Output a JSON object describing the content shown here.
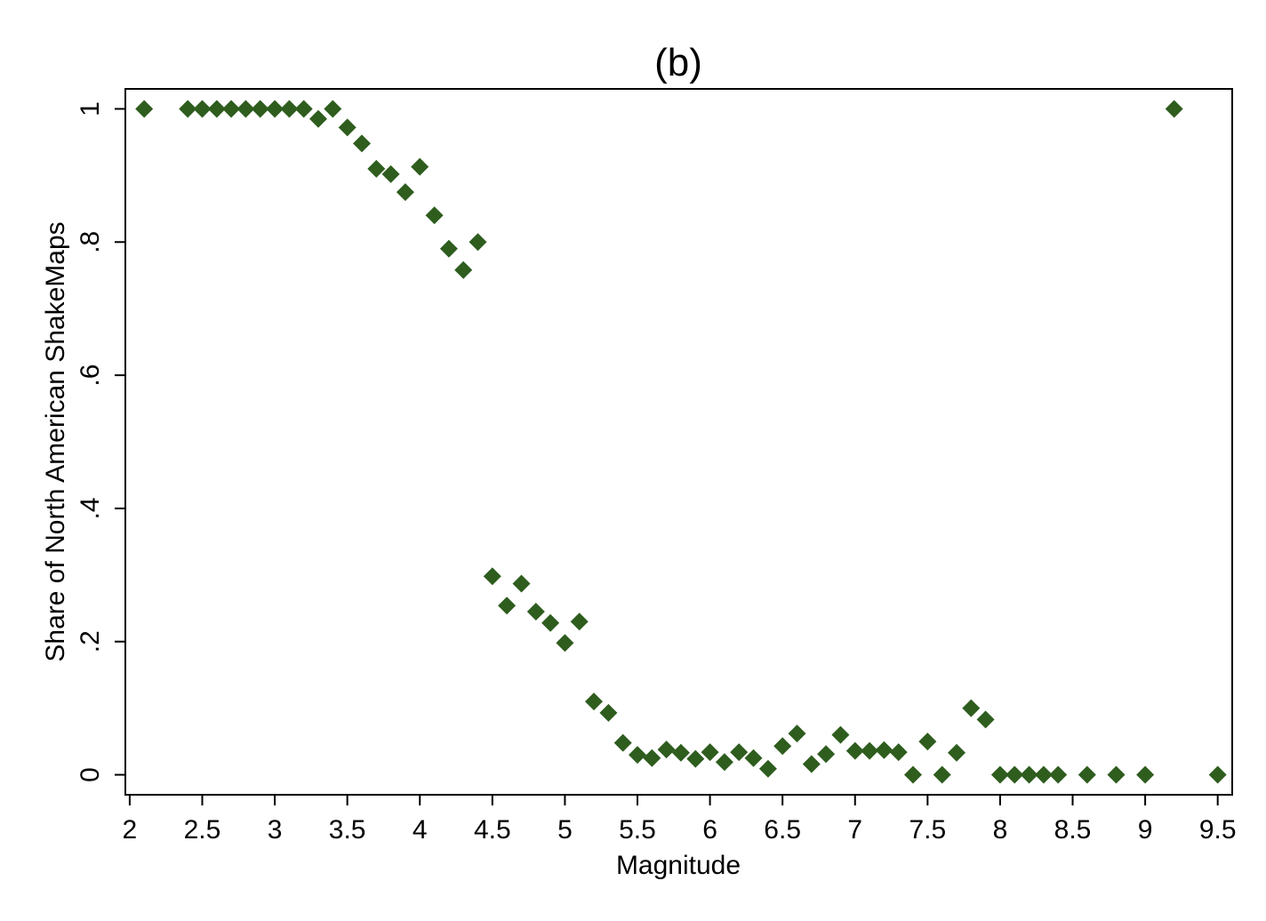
{
  "chart_data": {
    "type": "scatter",
    "title": "(b)",
    "xlabel": "Magnitude",
    "ylabel": "Share of North American ShakeMaps",
    "xlim": [
      1.97,
      9.6
    ],
    "ylim": [
      -0.03,
      1.03
    ],
    "xticks": [
      2,
      2.5,
      3,
      3.5,
      4,
      4.5,
      5,
      5.5,
      6,
      6.5,
      7,
      7.5,
      8,
      8.5,
      9,
      9.5
    ],
    "xtick_labels": [
      "2",
      "2.5",
      "3",
      "3.5",
      "4",
      "4.5",
      "5",
      "5.5",
      "6",
      "6.5",
      "7",
      "7.5",
      "8",
      "8.5",
      "9",
      "9.5"
    ],
    "yticks": [
      0,
      0.2,
      0.4,
      0.6,
      0.8,
      1
    ],
    "ytick_labels": [
      "0",
      ".2",
      ".4",
      ".6",
      ".8",
      "1"
    ],
    "grid": false,
    "marker": "diamond",
    "marker_color": "#2e5d1e",
    "series": [
      {
        "x": [
          2.1,
          2.4,
          2.5,
          2.6,
          2.7,
          2.8,
          2.9,
          3.0,
          3.1,
          3.2,
          3.3,
          3.4,
          3.5,
          3.6,
          3.7,
          3.8,
          3.9,
          4.0,
          4.1,
          4.2,
          4.3,
          4.4,
          4.5,
          4.6,
          4.7,
          4.8,
          4.9,
          5.0,
          5.1,
          5.2,
          5.3,
          5.4,
          5.5,
          5.6,
          5.7,
          5.8,
          5.9,
          6.0,
          6.1,
          6.2,
          6.3,
          6.4,
          6.5,
          6.6,
          6.7,
          6.8,
          6.9,
          7.0,
          7.1,
          7.2,
          7.3,
          7.4,
          7.5,
          7.6,
          7.7,
          7.8,
          7.9,
          8.0,
          8.1,
          8.2,
          8.3,
          8.4,
          8.6,
          8.8,
          9.0,
          9.2,
          9.5
        ],
        "y": [
          1.0,
          1.0,
          1.0,
          1.0,
          1.0,
          1.0,
          1.0,
          1.0,
          1.0,
          1.0,
          0.985,
          1.0,
          0.972,
          0.948,
          0.91,
          0.902,
          0.875,
          0.913,
          0.84,
          0.79,
          0.758,
          0.8,
          0.298,
          0.254,
          0.287,
          0.245,
          0.228,
          0.198,
          0.23,
          0.11,
          0.093,
          0.048,
          0.03,
          0.025,
          0.038,
          0.033,
          0.024,
          0.034,
          0.019,
          0.034,
          0.025,
          0.009,
          0.043,
          0.062,
          0.016,
          0.031,
          0.06,
          0.036,
          0.036,
          0.037,
          0.034,
          0.0,
          0.05,
          0.0,
          0.033,
          0.1,
          0.083,
          0.0,
          0.0,
          0.0,
          0.0,
          0.0,
          0.0,
          0.0,
          0.0,
          1.0,
          0.0
        ]
      }
    ]
  }
}
